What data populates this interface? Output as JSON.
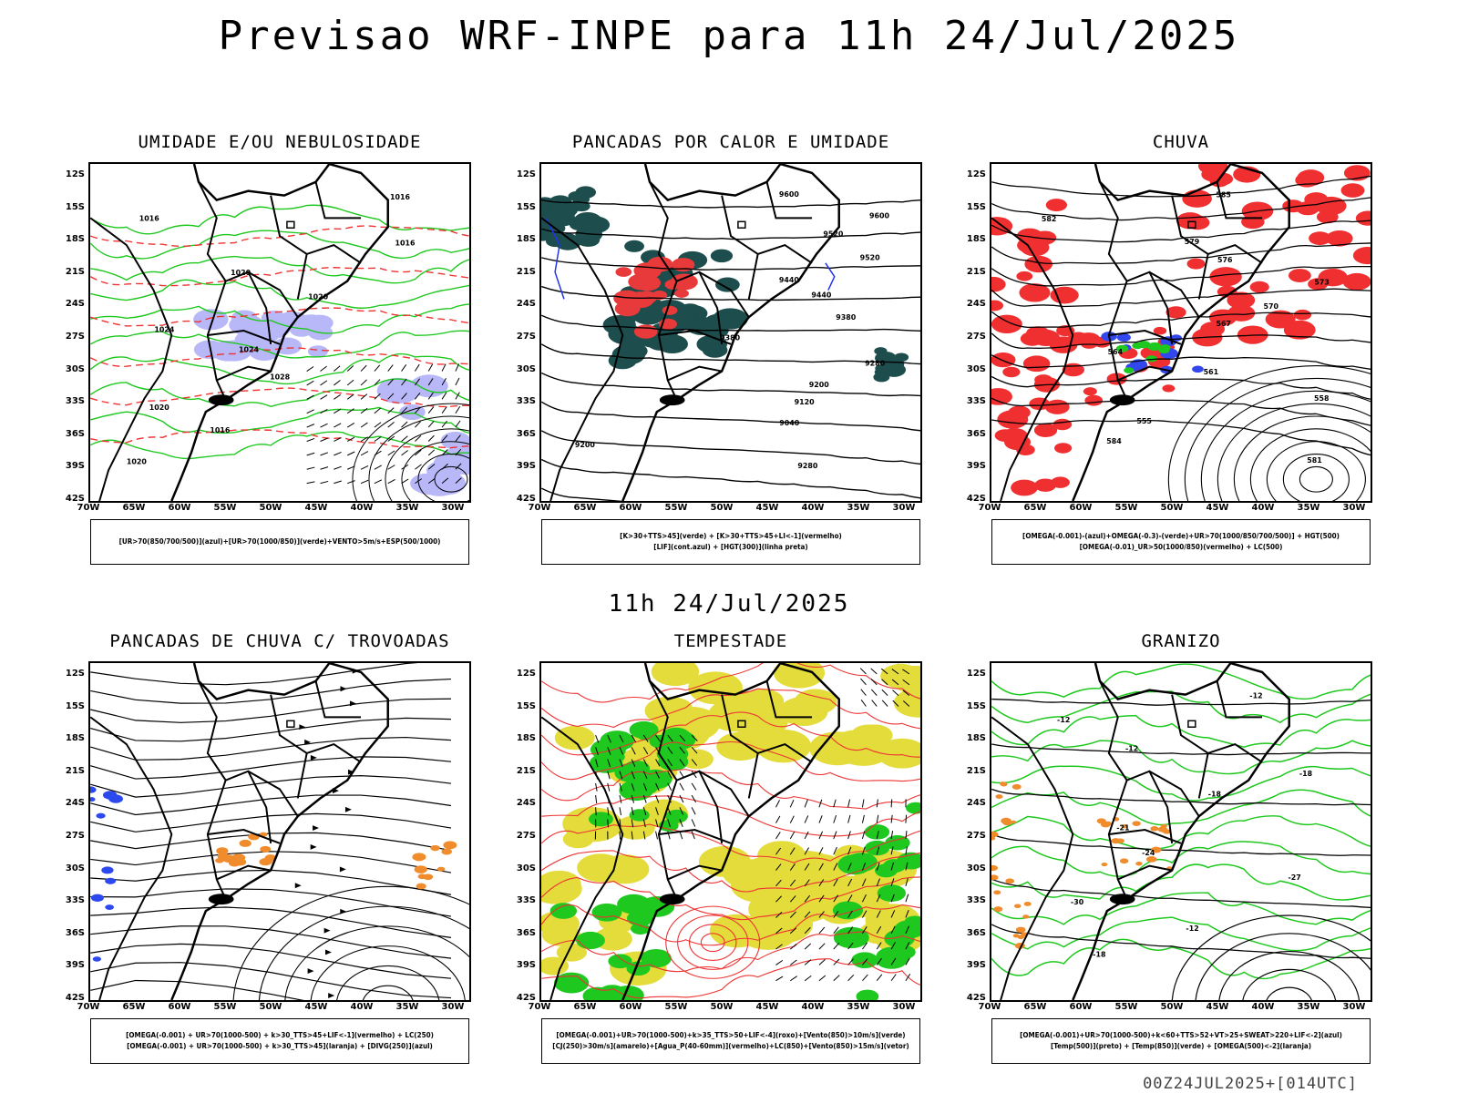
{
  "title": "Previsao WRF-INPE  para 11h 24/Jul/2025",
  "subtitle": "11h 24/Jul/2025",
  "footer": "00Z24JUL2025+[014UTC]",
  "lat_labels": [
    "12S",
    "15S",
    "18S",
    "21S",
    "24S",
    "27S",
    "30S",
    "33S",
    "36S",
    "39S",
    "42S"
  ],
  "lon_labels": [
    "70W",
    "65W",
    "60W",
    "55W",
    "50W",
    "45W",
    "40W",
    "35W",
    "30W"
  ],
  "panels": [
    {
      "id": "p1",
      "title": "UMIDADE E/OU NEBULOSIDADE",
      "legend": [
        "[UR>70(850/700/500)](azul)+[UR>70(1000/850)](verde)+VENTO>5m/s+ESP(500/1000)"
      ],
      "contour_labels": [
        "1016",
        "1016",
        "1016",
        "1020",
        "1020",
        "1024",
        "1024",
        "1028",
        "1020",
        "1016",
        "1020"
      ]
    },
    {
      "id": "p2",
      "title": "PANCADAS POR CALOR E UMIDADE",
      "legend": [
        "[K>30+TTS>45](verde) + [K>30+TTS>45+LI<-1](vermelho)",
        "[LIF](cont.azul) + [HGT(300)](linha preta)"
      ],
      "contour_labels": [
        "9600",
        "9600",
        "9520",
        "9520",
        "9440",
        "9440",
        "9380",
        "9380",
        "9280",
        "9200",
        "9120",
        "9040",
        "9200",
        "9280"
      ]
    },
    {
      "id": "p3",
      "title": "CHUVA",
      "legend": [
        "[OMEGA(-0.001)-(azul)+OMEGA(-0.3)-(verde)+UR>70(1000/850/700/500)] + HGT(500)",
        "[OMEGA(-0.01)_UR>50(1000/850)(vermelho) + LC(500)"
      ],
      "contour_labels": [
        "585",
        "582",
        "579",
        "576",
        "573",
        "570",
        "567",
        "564",
        "561",
        "558",
        "555",
        "584",
        "581"
      ]
    },
    {
      "id": "p4",
      "title": "PANCADAS DE CHUVA C/ TROVOADAS",
      "legend": [
        "[OMEGA(-0.001) + UR>70(1000-500) + k>30_TTS>45+LIF<-1](vermelho) + LC(250)",
        "[OMEGA(-0.001) + UR>70(1000-500) + k>30_TTS>45](laranja) + [DIVG(250)](azul)"
      ],
      "contour_labels": []
    },
    {
      "id": "p5",
      "title": "TEMPESTADE",
      "legend": [
        "[OMEGA(-0.001)+UR>70(1000-500)+k>35_TTS>50+LIF<-4](roxo)+[Vento(850)>10m/s](verde)",
        "[CJ(250)>30m/s](amarelo)+[Agua_P(40-60mm)](vermelho)+LC(850)+[Vento(850)>15m/s](vetor)"
      ],
      "contour_labels": []
    },
    {
      "id": "p6",
      "title": "GRANIZO",
      "legend": [
        "[OMEGA(-0.001)+UR>70(1000-500)+k<60+TTS>52+VT>25+SWEAT>220+LIF<-2](azul)",
        "[Temp(500)](preto) + [Temp(850)](verde) + [OMEGA(500)<-2](laranja)"
      ],
      "contour_labels": [
        "-12",
        "-12",
        "-12",
        "-18",
        "-18",
        "-21",
        "-24",
        "-27",
        "-30",
        "-12",
        "-18"
      ]
    }
  ]
}
